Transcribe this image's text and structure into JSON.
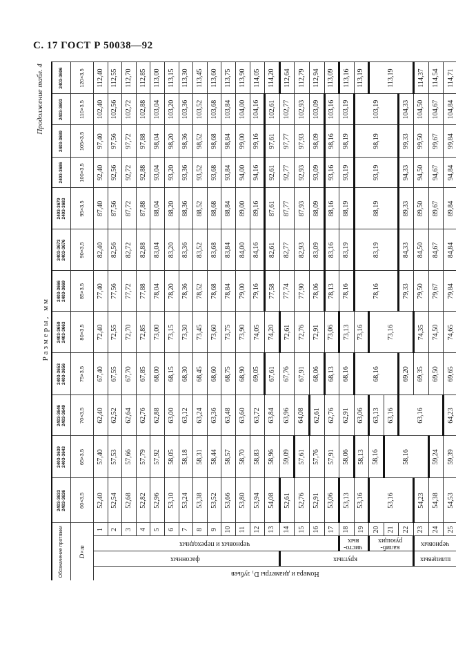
{
  "page_header": "С. 17 ГОСТ Р 50038—92",
  "caption": "Продолжение табл. 4",
  "dimensions_label": "Размеры, мм",
  "table": {
    "header_designation_label": "Обозначение протяжки",
    "header_size_label": "D×m",
    "teeth_label": "Номера и диаметры D₁ зубьев",
    "row_numbers": [
      "1",
      "2",
      "3",
      "4",
      "5",
      "6",
      "7",
      "8",
      "9",
      "10",
      "11",
      "12",
      "13",
      "14",
      "15",
      "16",
      "17",
      "18",
      "19",
      "20",
      "21",
      "22",
      "23",
      "24",
      "25"
    ],
    "level1_groups": [
      {
        "label": "фасонных",
        "rows": 13
      },
      {
        "label": "круглых",
        "rows": 9
      },
      {
        "label": "шлицевых",
        "rows": 3
      }
    ],
    "level2_groups": [
      {
        "label": "черновых и переходных",
        "rows": 17
      },
      {
        "label": "чисто-\nвых",
        "rows": 2
      },
      {
        "label": "калиб-\nрующих",
        "rows": 3
      },
      {
        "label": "черновых",
        "rows": 3
      }
    ],
    "columns": [
      {
        "designations": [
          "2403-3633",
          "2403-3636"
        ],
        "size": "60×3,5",
        "groups": [
          [
            "52,40",
            "52,54",
            "52,68",
            "52,82",
            "52,96",
            "53,10",
            "53,24",
            "53,38",
            "53,52",
            "53,66",
            "53,80",
            "53,94",
            "54,08"
          ],
          [
            "52,61",
            "52,76",
            "52,91",
            "53,06"
          ],
          [
            "53,13",
            "53,16"
          ],
          "53,16",
          [
            "54,23",
            "54,38",
            "54,53"
          ]
        ]
      },
      {
        "designations": [
          "2403-3639",
          "2403-3643"
        ],
        "size": "65×3,5",
        "groups": [
          [
            "57,40",
            "57,53",
            "57,66",
            "57,79",
            "57,92",
            "58,05",
            "58,18",
            "58,31",
            "58,44",
            "58,57",
            "58,70",
            "58,83",
            "58,96",
            "59,09"
          ],
          [
            "57,61",
            "57,76",
            "57,91",
            "58,06"
          ],
          [
            "58,13",
            "58,16"
          ],
          "58,16",
          [
            "59,24",
            "59,39"
          ]
        ]
      },
      {
        "designations": [
          "2403-3646",
          "2403-3649"
        ],
        "size": "70×3,5",
        "groups": [
          [
            "62,40",
            "62,52",
            "62,64",
            "62,76",
            "62,88",
            "63,00",
            "63,12",
            "63,24",
            "63,36",
            "63,48",
            "63,60",
            "63,72",
            "63,84",
            "63,96",
            "64,08"
          ],
          [
            "62,61",
            "62,76",
            "62,91",
            "63,06"
          ],
          [
            "63,13",
            "63,16"
          ],
          "63,16",
          [
            "64,23"
          ]
        ]
      },
      {
        "designations": [
          "2403-3653",
          "2403-3656"
        ],
        "size": "75×3,5",
        "groups": [
          [
            "67,40",
            "67,55",
            "67,70",
            "67,85",
            "68,00",
            "68,15",
            "68,30",
            "68,45",
            "68,60",
            "68,75",
            "68,90",
            "69,05"
          ],
          [
            "67,61",
            "67,76",
            "67,91",
            "68,06"
          ],
          [
            "68,13",
            "68,16"
          ],
          "68,16",
          [
            "69,20",
            "69,35",
            "69,50",
            "69,65"
          ]
        ]
      },
      {
        "designations": [
          "2403-3659",
          "2403-3663"
        ],
        "size": "80×3,5",
        "groups": [
          [
            "72,40",
            "72,55",
            "72,70",
            "72,85",
            "73,00",
            "73,15",
            "73,30",
            "73,45",
            "73,60",
            "73,75",
            "73,90",
            "74,05",
            "74,20"
          ],
          [
            "72,61",
            "72,76",
            "72,91",
            "73,06"
          ],
          [
            "73,13",
            "73,16"
          ],
          "73,16",
          [
            "74,35",
            "74,50",
            "74,65"
          ]
        ]
      },
      {
        "designations": [
          "2403-3666",
          "2403-3669"
        ],
        "size": "85×3,5",
        "groups": [
          [
            "77,40",
            "77,56",
            "77,72",
            "77,88",
            "78,04",
            "78,20",
            "78,36",
            "78,52",
            "78,68",
            "78,84",
            "79,00",
            "79,16"
          ],
          [
            "77,58",
            "77,74",
            "77,90",
            "78,06"
          ],
          [
            "78,13",
            "78,16"
          ],
          "78,16",
          [
            "79,33",
            "79,50",
            "79,67",
            "79,84"
          ]
        ]
      },
      {
        "designations": [
          "2403-3673",
          "2403-3676"
        ],
        "size": "90×3,5",
        "groups": [
          [
            "82,40",
            "82,56",
            "82,72",
            "82,88",
            "83,04",
            "83,20",
            "83,36",
            "83,52",
            "83,68",
            "83,84",
            "84,00",
            "84,16"
          ],
          [
            "82,61",
            "82,77",
            "82,93",
            "83,09"
          ],
          [
            "83,16",
            "83,19"
          ],
          "83,19",
          [
            "84,33",
            "84,50",
            "84,67",
            "84,84"
          ]
        ]
      },
      {
        "designations": [
          "2403-3679",
          "2403-3683"
        ],
        "size": "95×3,5",
        "groups": [
          [
            "87,40",
            "87,56",
            "87,72",
            "87,88",
            "88,04",
            "88,20",
            "88,36",
            "88,52",
            "88,68",
            "88,84",
            "89,00",
            "89,16"
          ],
          [
            "87,61",
            "87,77",
            "87,93",
            "88,09"
          ],
          [
            "88,16",
            "88,19"
          ],
          "88,19",
          [
            "89,33",
            "89,50",
            "89,67",
            "89,84"
          ]
        ]
      },
      {
        "designations": [
          "2403-3686"
        ],
        "size": "100×3,5",
        "groups": [
          [
            "92,40",
            "92,56",
            "92,72",
            "92,88",
            "93,04",
            "93,20",
            "93,36",
            "93,52",
            "93,68",
            "93,84",
            "94,00",
            "94,16"
          ],
          [
            "92,61",
            "92,77",
            "92,93",
            "93,09"
          ],
          [
            "93,16",
            "93,19"
          ],
          "93,19",
          [
            "94,33",
            "94,50",
            "94,67",
            "94,84"
          ]
        ]
      },
      {
        "designations": [
          "2403-3689"
        ],
        "size": "105×3,5",
        "groups": [
          [
            "97,40",
            "97,56",
            "97,72",
            "97,88",
            "98,04",
            "98,20",
            "98,36",
            "98,52",
            "98,68",
            "98,84",
            "99,00",
            "99,16"
          ],
          [
            "97,61",
            "97,77",
            "97,93",
            "98,09"
          ],
          [
            "98,16",
            "98,19"
          ],
          "98,19",
          [
            "99,33",
            "99,50",
            "99,67",
            "99,84"
          ]
        ]
      },
      {
        "designations": [
          "2403-3693"
        ],
        "size": "110×3,5",
        "groups": [
          [
            "102,40",
            "102,56",
            "102,72",
            "102,88",
            "103,04",
            "103,20",
            "103,36",
            "103,52",
            "103,68",
            "103,84",
            "104,00",
            "104,16"
          ],
          [
            "102,61",
            "102,77",
            "102,93",
            "103,09"
          ],
          [
            "103,16",
            "103,19"
          ],
          "103,19",
          [
            "104,33",
            "104,50",
            "104,67",
            "104,84"
          ]
        ]
      },
      {
        "designations": [
          "2403-3696"
        ],
        "size": "120×3,5",
        "groups": [
          [
            "112,40",
            "112,55",
            "112,70",
            "112,85",
            "113,00",
            "113,15",
            "113,30",
            "113,45",
            "113,60",
            "113,75",
            "113,90",
            "114,05",
            "114,20"
          ],
          [
            "112,64",
            "112,79",
            "112,94",
            "113,09"
          ],
          [
            "113,16",
            "113,19"
          ],
          "113,19",
          [
            "114,37",
            "114,54",
            "114,71"
          ]
        ]
      }
    ]
  }
}
